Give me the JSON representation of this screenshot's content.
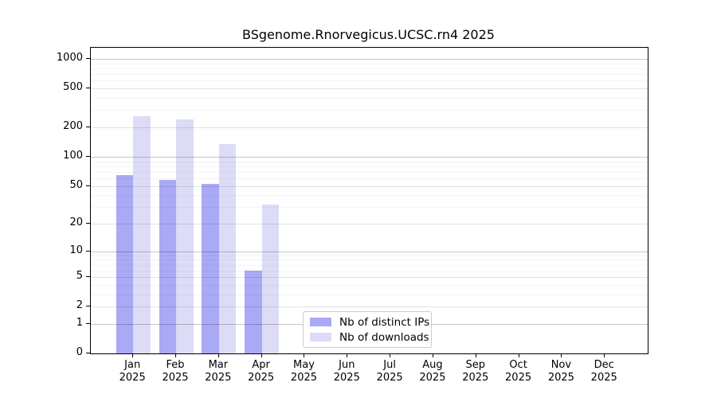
{
  "chart_data": {
    "type": "bar",
    "title": "BSgenome.Rnorvegicus.UCSC.rn4 2025",
    "categories": [
      "Jan",
      "Feb",
      "Mar",
      "Apr",
      "May",
      "Jun",
      "Jul",
      "Aug",
      "Sep",
      "Oct",
      "Nov",
      "Dec"
    ],
    "category_year": "2025",
    "series": [
      {
        "name": "Nb of distinct IPs",
        "color": "#a9a9f5",
        "values": [
          65,
          58,
          52,
          6,
          0,
          0,
          0,
          0,
          0,
          0,
          0,
          0
        ]
      },
      {
        "name": "Nb of downloads",
        "color": "#dcdcf6",
        "values": [
          260,
          240,
          135,
          32,
          0,
          0,
          0,
          0,
          0,
          0,
          0,
          0
        ]
      }
    ],
    "yscale": "log10(1+y)",
    "yticks": [
      0,
      1,
      2,
      5,
      10,
      20,
      50,
      100,
      200,
      500,
      1000
    ],
    "ylim": [
      0,
      1300
    ],
    "grid": true,
    "legend_position": "bottom-center-inside",
    "axis_color": "#000000",
    "background": "#ffffff"
  }
}
